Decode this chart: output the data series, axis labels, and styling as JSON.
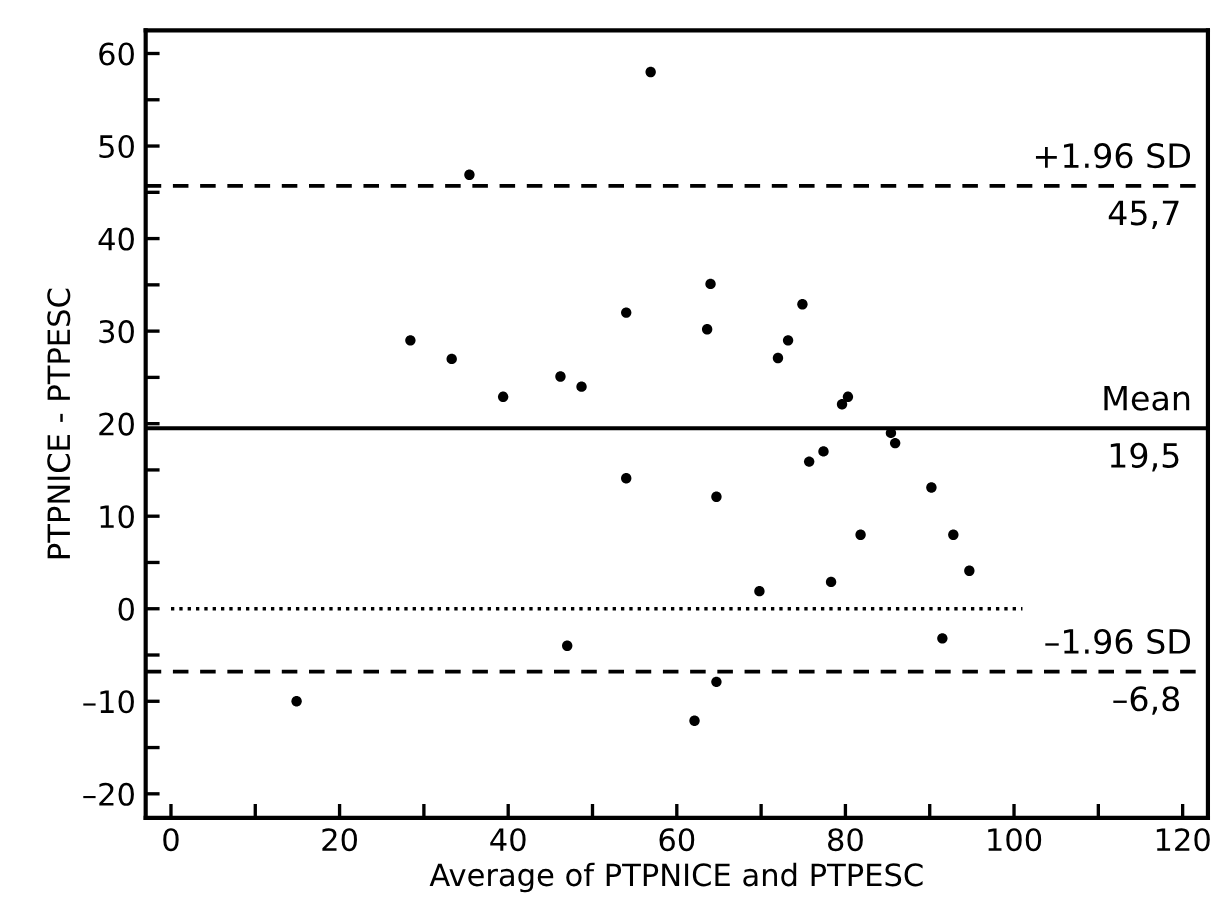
{
  "chart_data": {
    "type": "scatter",
    "xlabel": "Average of PTPNICE and PTPESC",
    "ylabel": "PTPNICE - PTPESC",
    "xlim": [
      -3,
      123
    ],
    "ylim": [
      -22.6,
      62.5
    ],
    "xticks": [
      0,
      {
        "value": 10,
        "label": null
      },
      20,
      {
        "value": 30,
        "label": null
      },
      40,
      {
        "value": 50,
        "label": null
      },
      60,
      {
        "value": 70,
        "label": null
      },
      80,
      {
        "value": 90,
        "label": null
      },
      100,
      {
        "value": 110,
        "label": null
      },
      120
    ],
    "yticks": [
      {
        "value": -20,
        "label": "–20"
      },
      {
        "value": -15,
        "label": null
      },
      {
        "value": -10,
        "label": "–10"
      },
      {
        "value": -5,
        "label": null
      },
      0,
      {
        "value": 5,
        "label": null
      },
      10,
      {
        "value": 15,
        "label": null
      },
      20,
      {
        "value": 25,
        "label": null
      },
      30,
      {
        "value": 35,
        "label": null
      },
      40,
      {
        "value": 45,
        "label": null
      },
      50,
      {
        "value": 55,
        "label": null
      },
      60
    ],
    "grid": false,
    "legend": false,
    "series": [
      {
        "marker": "circle",
        "color": "#000000",
        "x": [
          56.9,
          35.4,
          28.4,
          33.3,
          39.4,
          46.2,
          48.7,
          54.0,
          54.0,
          47.0,
          14.9,
          62.1,
          64.0,
          63.6,
          74.9,
          73.2,
          72.0,
          79.6,
          80.3,
          85.4,
          85.9,
          77.4,
          75.7,
          64.7,
          90.2,
          81.8,
          92.8,
          94.7,
          69.8,
          78.3,
          91.5,
          64.7
        ],
        "values": [
          58.0,
          46.9,
          29.0,
          27.0,
          22.9,
          25.1,
          24.0,
          32.0,
          14.1,
          -4.0,
          -10.0,
          -12.1,
          35.1,
          30.2,
          32.9,
          29.0,
          27.1,
          22.1,
          22.9,
          19.0,
          17.9,
          17.0,
          15.9,
          12.1,
          13.1,
          8.0,
          8.0,
          4.1,
          1.9,
          2.9,
          -3.2,
          -7.9
        ]
      },
      {
        "type": "line",
        "color": "#000000",
        "line_style": "dotted",
        "marker": "none",
        "x": [
          0,
          101
        ],
        "values": [
          0,
          0
        ]
      }
    ],
    "ref_lines": [
      {
        "axis": "y",
        "value": 45.7,
        "label": "+1.96 SD",
        "color": "#000000",
        "line_style": "dashed"
      },
      {
        "axis": "y",
        "value": 19.5,
        "label": "Mean",
        "color": "#000000",
        "line_style": "solid"
      },
      {
        "axis": "y",
        "value": -6.8,
        "label": "–1.96 SD",
        "color": "#000000",
        "line_style": "dashed"
      }
    ],
    "annotations": [
      {
        "text": "45,7",
        "y": 45.7
      },
      {
        "text": "19,5",
        "y": 19.5
      },
      {
        "text": "–6,8",
        "y": -6.8
      }
    ]
  }
}
